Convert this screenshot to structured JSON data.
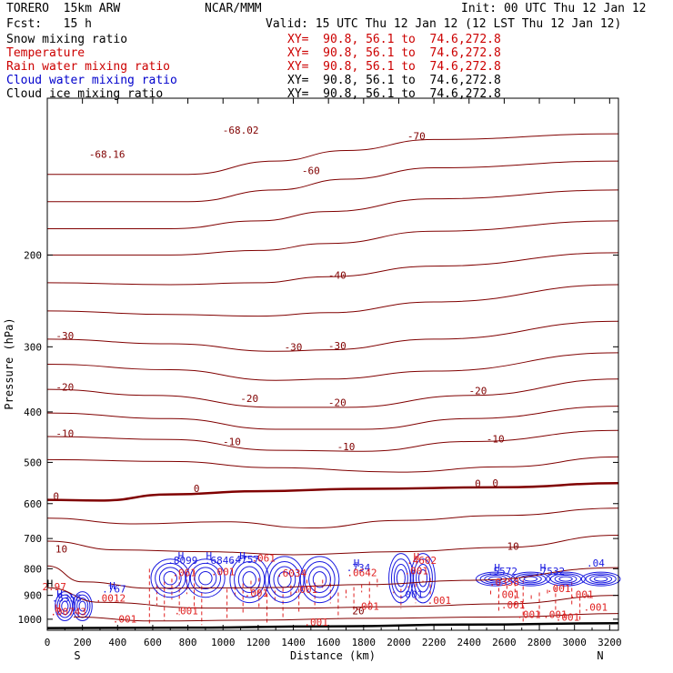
{
  "header": {
    "model": "TORERO  15km ARW",
    "center": "NCAR/MMM",
    "init": "Init: 00 UTC Thu 12 Jan 12",
    "fcst": "Fcst:   15 h",
    "valid": "Valid: 15 UTC Thu 12 Jan 12 (12 LST Thu 12 Jan 12)"
  },
  "legend": [
    {
      "name": "Snow mixing ratio",
      "color": "#000000",
      "xy": "XY=  90.8, 56.1 to  74.6,272.8"
    },
    {
      "name": "Temperature",
      "color": "#cc0000",
      "xy": "XY=  90.8, 56.1 to  74.6,272.8"
    },
    {
      "name": "Rain water mixing ratio",
      "color": "#cc0000",
      "xy": "XY=  90.8, 56.1 to  74.6,272.8"
    },
    {
      "name": "Cloud water mixing ratio",
      "color": "#0000cc",
      "xy": "XY=  90.8, 56.1 to  74.6,272.8"
    },
    {
      "name": "Cloud ice mixing ratio",
      "color": "#000000",
      "xy": "XY=  90.8, 56.1 to  74.6,272.8"
    }
  ],
  "colors": {
    "temperature": "#800000",
    "rain": "#e02020",
    "cloud_water": "#1a1ae0",
    "ground": "#000000",
    "frame": "#000000"
  },
  "chart_data": {
    "type": "line",
    "xlabel": "Distance (km)",
    "ylabel": "Pressure (hPa)",
    "xlim": [
      0,
      3250
    ],
    "ylim": [
      1050,
      100
    ],
    "yscale": "log",
    "x_ticks": [
      0,
      200,
      400,
      600,
      800,
      1000,
      1200,
      1400,
      1600,
      1800,
      2000,
      2200,
      2400,
      2600,
      2800,
      3000,
      3200
    ],
    "y_ticks": [
      200,
      300,
      400,
      500,
      600,
      700,
      800,
      900,
      1000
    ],
    "x_end_labels": {
      "left": "S",
      "right": "N"
    },
    "temperature_isotherms": [
      {
        "value": -60,
        "points": [
          [
            0,
            140
          ],
          [
            800,
            140
          ],
          [
            1300,
            132
          ],
          [
            1700,
            126
          ],
          [
            2200,
            120
          ],
          [
            3250,
            117
          ]
        ]
      },
      {
        "value": -55,
        "points": [
          [
            0,
            158
          ],
          [
            800,
            158
          ],
          [
            1300,
            150
          ],
          [
            1700,
            143
          ],
          [
            2200,
            136
          ],
          [
            3250,
            132
          ]
        ]
      },
      {
        "value": -50,
        "points": [
          [
            0,
            178
          ],
          [
            700,
            178
          ],
          [
            1200,
            172
          ],
          [
            1600,
            165
          ],
          [
            2200,
            156
          ],
          [
            3250,
            150
          ]
        ]
      },
      {
        "value": -45,
        "points": [
          [
            0,
            200
          ],
          [
            700,
            200
          ],
          [
            1200,
            196
          ],
          [
            1600,
            190
          ],
          [
            2200,
            180
          ],
          [
            3250,
            172
          ]
        ]
      },
      {
        "value": -40,
        "points": [
          [
            0,
            226
          ],
          [
            700,
            228
          ],
          [
            1200,
            226
          ],
          [
            1600,
            220
          ],
          [
            2200,
            210
          ],
          [
            3250,
            198
          ]
        ]
      },
      {
        "value": -35,
        "points": [
          [
            0,
            256
          ],
          [
            700,
            260
          ],
          [
            1200,
            262
          ],
          [
            1600,
            258
          ],
          [
            2200,
            246
          ],
          [
            3250,
            228
          ]
        ]
      },
      {
        "value": -30,
        "points": [
          [
            0,
            290
          ],
          [
            700,
            296
          ],
          [
            1300,
            306
          ],
          [
            1600,
            304
          ],
          [
            2200,
            290
          ],
          [
            3250,
            268
          ]
        ]
      },
      {
        "value": -25,
        "points": [
          [
            0,
            324
          ],
          [
            700,
            332
          ],
          [
            1300,
            348
          ],
          [
            1600,
            346
          ],
          [
            2200,
            334
          ],
          [
            3250,
            308
          ]
        ]
      },
      {
        "value": -20,
        "points": [
          [
            0,
            362
          ],
          [
            600,
            372
          ],
          [
            1300,
            392
          ],
          [
            1700,
            392
          ],
          [
            2400,
            372
          ],
          [
            3250,
            346
          ]
        ]
      },
      {
        "value": -15,
        "points": [
          [
            0,
            402
          ],
          [
            700,
            412
          ],
          [
            1300,
            432
          ],
          [
            1800,
            432
          ],
          [
            2400,
            412
          ],
          [
            3250,
            390
          ]
        ]
      },
      {
        "value": -10,
        "points": [
          [
            0,
            446
          ],
          [
            700,
            452
          ],
          [
            1300,
            474
          ],
          [
            1800,
            476
          ],
          [
            2400,
            456
          ],
          [
            3250,
            434
          ]
        ]
      },
      {
        "value": -5,
        "points": [
          [
            0,
            494
          ],
          [
            700,
            498
          ],
          [
            1300,
            512
          ],
          [
            2000,
            522
          ],
          [
            2600,
            510
          ],
          [
            3250,
            488
          ]
        ]
      },
      {
        "value": 0,
        "points": [
          [
            0,
            590
          ],
          [
            300,
            592
          ],
          [
            700,
            576
          ],
          [
            1200,
            568
          ],
          [
            1800,
            562
          ],
          [
            2600,
            558
          ],
          [
            3250,
            548
          ]
        ]
      },
      {
        "value": 5,
        "points": [
          [
            0,
            640
          ],
          [
            500,
            656
          ],
          [
            1000,
            650
          ],
          [
            1500,
            668
          ],
          [
            2000,
            646
          ],
          [
            2600,
            632
          ],
          [
            3250,
            612
          ]
        ]
      },
      {
        "value": 10,
        "points": [
          [
            0,
            708
          ],
          [
            400,
            736
          ],
          [
            900,
            742
          ],
          [
            1400,
            752
          ],
          [
            2000,
            742
          ],
          [
            2600,
            728
          ],
          [
            3250,
            690
          ]
        ]
      },
      {
        "value": 15,
        "points": [
          [
            0,
            790
          ],
          [
            200,
            848
          ],
          [
            600,
            872
          ],
          [
            1200,
            870
          ],
          [
            1800,
            858
          ],
          [
            2400,
            842
          ],
          [
            3250,
            796
          ]
        ]
      },
      {
        "value": 20,
        "points": [
          [
            0,
            870
          ],
          [
            300,
            928
          ],
          [
            900,
            952
          ],
          [
            1400,
            952
          ],
          [
            2000,
            946
          ],
          [
            2600,
            934
          ],
          [
            3250,
            900
          ]
        ]
      },
      {
        "value": 25,
        "points": [
          [
            150,
            990
          ],
          [
            600,
            1008
          ],
          [
            1200,
            1004
          ],
          [
            1800,
            996
          ],
          [
            2600,
            990
          ],
          [
            3250,
            975
          ]
        ]
      }
    ],
    "ground": {
      "points": [
        [
          0,
          1040
        ],
        [
          800,
          1038
        ],
        [
          1600,
          1032
        ],
        [
          2400,
          1024
        ],
        [
          3250,
          1018
        ]
      ]
    },
    "cloud_water_cells": [
      {
        "x": [
          600,
          1000
        ],
        "p": [
          760,
          900
        ]
      },
      {
        "x": [
          1050,
          1650
        ],
        "p": [
          750,
          920
        ]
      },
      {
        "x": [
          1950,
          2200
        ],
        "p": [
          740,
          920
        ]
      },
      {
        "x": [
          2450,
          3250
        ],
        "p": [
          810,
          860
        ]
      },
      {
        "x": [
          50,
          250
        ],
        "p": [
          880,
          1000
        ]
      }
    ],
    "rain_cells": [
      {
        "x": [
          560,
          900
        ],
        "p": [
          800,
          1030
        ]
      },
      {
        "x": [
          1000,
          1500
        ],
        "p": [
          830,
          1030
        ]
      },
      {
        "x": [
          1500,
          1900
        ],
        "p": [
          830,
          1010
        ]
      },
      {
        "x": [
          1950,
          2200
        ],
        "p": [
          820,
          970
        ]
      },
      {
        "x": [
          2500,
          3100
        ],
        "p": [
          840,
          1010
        ]
      }
    ],
    "annotations": [
      {
        "text": "-68.16",
        "x": 340,
        "p": 130,
        "color": "temperature"
      },
      {
        "text": "-68.02",
        "x": 1100,
        "p": 117,
        "color": "temperature"
      },
      {
        "text": "-70",
        "x": 2100,
        "p": 120,
        "color": "temperature"
      },
      {
        "text": "-60",
        "x": 1500,
        "p": 140,
        "color": "temperature"
      },
      {
        "text": "-40",
        "x": 1650,
        "p": 222,
        "color": "temperature"
      },
      {
        "text": "-30",
        "x": 100,
        "p": 290,
        "color": "temperature"
      },
      {
        "text": "-30",
        "x": 1400,
        "p": 305,
        "color": "temperature"
      },
      {
        "text": "-30",
        "x": 1650,
        "p": 303,
        "color": "temperature"
      },
      {
        "text": "-20",
        "x": 100,
        "p": 364,
        "color": "temperature"
      },
      {
        "text": "-20",
        "x": 1150,
        "p": 383,
        "color": "temperature"
      },
      {
        "text": "-20",
        "x": 1650,
        "p": 390,
        "color": "temperature"
      },
      {
        "text": "-20",
        "x": 2450,
        "p": 370,
        "color": "temperature"
      },
      {
        "text": "-10",
        "x": 100,
        "p": 447,
        "color": "temperature"
      },
      {
        "text": "-10",
        "x": 1050,
        "p": 463,
        "color": "temperature"
      },
      {
        "text": "-10",
        "x": 1700,
        "p": 474,
        "color": "temperature"
      },
      {
        "text": "-10",
        "x": 2550,
        "p": 458,
        "color": "temperature"
      },
      {
        "text": "0",
        "x": 50,
        "p": 590,
        "color": "temperature"
      },
      {
        "text": "0",
        "x": 850,
        "p": 570,
        "color": "temperature"
      },
      {
        "text": "0",
        "x": 2450,
        "p": 557,
        "color": "temperature"
      },
      {
        "text": "0",
        "x": 2550,
        "p": 556,
        "color": "temperature"
      },
      {
        "text": "10",
        "x": 80,
        "p": 745,
        "color": "temperature"
      },
      {
        "text": "10",
        "x": 2650,
        "p": 735,
        "color": "temperature"
      },
      {
        "text": "20",
        "x": 1770,
        "p": 978,
        "color": "temperature"
      },
      {
        "text": "H",
        "x": 15,
        "p": 868,
        "color": "ground"
      },
      {
        "text": "2.97",
        "x": 40,
        "p": 880,
        "color": "rain"
      },
      {
        "text": "H",
        "x": 70,
        "p": 908,
        "color": "cloud_water"
      },
      {
        "text": ".5356",
        "x": 110,
        "p": 925,
        "color": "cloud_water"
      },
      {
        "text": "H",
        "x": 60,
        "p": 967,
        "color": "rain"
      },
      {
        "text": ".00743",
        "x": 120,
        "p": 983,
        "color": "rain"
      },
      {
        "text": "H",
        "x": 370,
        "p": 876,
        "color": "cloud_water"
      },
      {
        "text": ".767",
        "x": 380,
        "p": 888,
        "color": "cloud_water"
      },
      {
        "text": ".0012",
        "x": 360,
        "p": 925,
        "color": "rain"
      },
      {
        "text": ".001",
        "x": 440,
        "p": 1015,
        "color": "rain"
      },
      {
        "text": ".001",
        "x": 790,
        "p": 978,
        "color": "rain"
      },
      {
        "text": "H",
        "x": 760,
        "p": 768,
        "color": "cloud_water"
      },
      {
        "text": ".8099",
        "x": 770,
        "p": 783,
        "color": "cloud_water"
      },
      {
        "text": "H",
        "x": 920,
        "p": 768,
        "color": "cloud_water"
      },
      {
        "text": ".6846",
        "x": 980,
        "p": 783,
        "color": "cloud_water"
      },
      {
        "text": "H",
        "x": 1110,
        "p": 768,
        "color": "cloud_water"
      },
      {
        "text": ".4757",
        "x": 1120,
        "p": 780,
        "color": "cloud_water"
      },
      {
        "text": ".061",
        "x": 1230,
        "p": 775,
        "color": "rain"
      },
      {
        "text": ".061",
        "x": 780,
        "p": 827,
        "color": "rain"
      },
      {
        "text": ".001",
        "x": 1000,
        "p": 823,
        "color": "rain"
      },
      {
        "text": ".001",
        "x": 1190,
        "p": 905,
        "color": "rain"
      },
      {
        "text": ".6034",
        "x": 1390,
        "p": 828,
        "color": "rain"
      },
      {
        "text": ".001",
        "x": 1470,
        "p": 890,
        "color": "rain"
      },
      {
        "text": ".001",
        "x": 1530,
        "p": 1030,
        "color": "rain"
      },
      {
        "text": "H",
        "x": 1760,
        "p": 793,
        "color": "cloud_water"
      },
      {
        "text": ".734",
        "x": 1770,
        "p": 808,
        "color": "cloud_water"
      },
      {
        "text": ".0642",
        "x": 1790,
        "p": 826,
        "color": "rain"
      },
      {
        "text": ".001",
        "x": 1820,
        "p": 960,
        "color": "rain"
      },
      {
        "text": "H",
        "x": 2100,
        "p": 770,
        "color": "rain"
      },
      {
        "text": ".4602",
        "x": 2130,
        "p": 783,
        "color": "rain"
      },
      {
        "text": ".001",
        "x": 2100,
        "p": 820,
        "color": "rain"
      },
      {
        "text": ".001",
        "x": 2070,
        "p": 910,
        "color": "cloud_water"
      },
      {
        "text": ".001",
        "x": 2230,
        "p": 935,
        "color": "rain"
      },
      {
        "text": "H",
        "x": 2560,
        "p": 808,
        "color": "cloud_water"
      },
      {
        "text": ".5572",
        "x": 2590,
        "p": 822,
        "color": "cloud_water"
      },
      {
        "text": ".0358",
        "x": 2600,
        "p": 862,
        "color": "rain"
      },
      {
        "text": ".001",
        "x": 2620,
        "p": 910,
        "color": "rain"
      },
      {
        "text": ".001",
        "x": 2650,
        "p": 953,
        "color": "rain"
      },
      {
        "text": ".001",
        "x": 2740,
        "p": 995,
        "color": "rain"
      },
      {
        "text": "H",
        "x": 2820,
        "p": 808,
        "color": "cloud_water"
      },
      {
        "text": ".7532",
        "x": 2860,
        "p": 822,
        "color": "cloud_water"
      },
      {
        "text": ".001",
        "x": 2910,
        "p": 887,
        "color": "rain"
      },
      {
        "text": ".001",
        "x": 2890,
        "p": 995,
        "color": "rain"
      },
      {
        "text": ".001",
        "x": 3040,
        "p": 910,
        "color": "rain"
      },
      {
        "text": ".001",
        "x": 2960,
        "p": 1007,
        "color": "rain"
      },
      {
        "text": ".001",
        "x": 3120,
        "p": 963,
        "color": "rain"
      },
      {
        "text": ".04",
        "x": 3120,
        "p": 792,
        "color": "cloud_water"
      }
    ]
  }
}
